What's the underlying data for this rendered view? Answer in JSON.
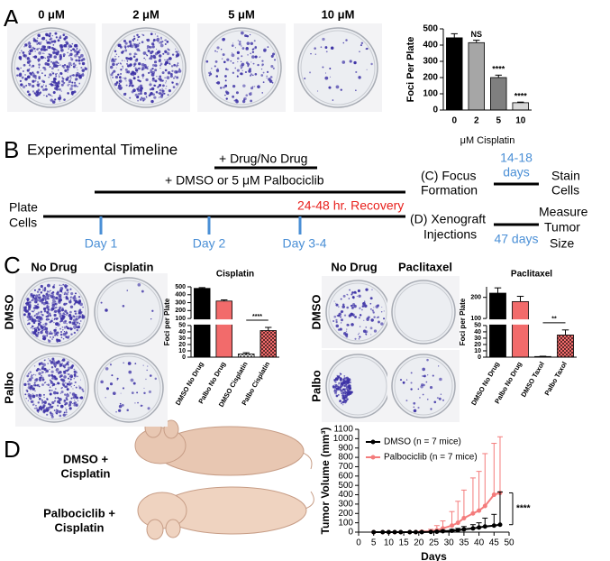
{
  "panel_labels": [
    "A",
    "B",
    "C",
    "D"
  ],
  "panel_a": {
    "dish_labels": [
      "0 μM",
      "2 μM",
      "5 μM",
      "10 μM"
    ]
  },
  "panel_b": {
    "title": "Experimental Timeline",
    "drug": "+ Drug/No Drug",
    "pretreat": "+ DMSO or 5 μM Palbociclib",
    "start": [
      "Plate",
      "Cells"
    ],
    "recovery": "24-48 hr. Recovery",
    "days": [
      "Day 1",
      "Day 2",
      "Day 3-4"
    ],
    "focus": {
      "label": [
        "(C) Focus",
        "Formation"
      ],
      "duration": [
        "14-18",
        "days"
      ],
      "end": [
        "Stain",
        "Cells"
      ]
    },
    "xenograft": {
      "label": [
        "(D) Xenograft",
        "Injections"
      ],
      "duration": "47 days",
      "end": [
        "Measure",
        "Tumor",
        "Size"
      ]
    }
  },
  "panel_c": {
    "left": {
      "columns": [
        "No Drug",
        "Cisplatin"
      ],
      "rows": [
        "DMSO",
        "Palbo"
      ]
    },
    "right": {
      "columns": [
        "No Drug",
        "Paclitaxel"
      ],
      "rows": [
        "DMSO",
        "Palbo"
      ]
    }
  },
  "panel_d": {
    "mouse_labels": [
      [
        "DMSO +",
        "Cisplatin"
      ],
      [
        "Palbociclib +",
        "Cisplatin"
      ]
    ]
  },
  "chart_data": [
    {
      "type": "bar",
      "categories": [
        "0",
        "2",
        "5",
        "10"
      ],
      "values": [
        445,
        415,
        200,
        45
      ],
      "errors": [
        25,
        15,
        15,
        4
      ],
      "colors": [
        "#000000",
        "#a6a6a6",
        "#7f7f7f",
        "#d9d9d9"
      ],
      "significance": [
        null,
        "NS",
        "****",
        "****"
      ],
      "ylabel": "Foci Per Plate",
      "xlabel": "μM Cisplatin",
      "ylim": [
        0,
        500
      ],
      "yticks": [
        0,
        100,
        200,
        300,
        400,
        500
      ]
    },
    {
      "type": "bar",
      "title": "Cisplatin",
      "categories": [
        "DMSO No Drug",
        "Palbo No Drug",
        "DMSO Cisplatin",
        "Palbo Cisplatin"
      ],
      "values": [
        480,
        320,
        5,
        42
      ],
      "errors": [
        10,
        15,
        2,
        5
      ],
      "colors": [
        "#000000",
        "#f26b6b",
        "#ffffff",
        "#f26b6b"
      ],
      "hatched": [
        false,
        false,
        true,
        true
      ],
      "significance": [
        null,
        null,
        null,
        "****"
      ],
      "ylabel": "Foci per Plate",
      "ylim": [
        0,
        500
      ],
      "axis_break": [
        50,
        100
      ],
      "yticks": [
        0,
        10,
        20,
        30,
        40,
        50,
        100,
        200,
        300,
        400,
        500
      ]
    },
    {
      "type": "bar",
      "title": "Paclitaxel",
      "categories": [
        "DMSO No Drug",
        "Palbo No Drug",
        "DMSO Taxol",
        "Palbo Taxol"
      ],
      "values": [
        220,
        180,
        1,
        35
      ],
      "errors": [
        25,
        25,
        0.5,
        8
      ],
      "colors": [
        "#000000",
        "#f26b6b",
        "#ffffff",
        "#f26b6b"
      ],
      "hatched": [
        false,
        false,
        true,
        true
      ],
      "significance": [
        null,
        null,
        null,
        "**"
      ],
      "ylabel": "Foci per Plate",
      "ylim": [
        0,
        250
      ],
      "axis_break": [
        50,
        100
      ],
      "yticks": [
        0,
        10,
        20,
        30,
        40,
        50,
        100,
        200
      ]
    },
    {
      "type": "line",
      "ylabel": "Tumor Volume (mm³)",
      "xlabel": "Days",
      "x": [
        5,
        8,
        10,
        12,
        14,
        17,
        19,
        21,
        24,
        26,
        28,
        31,
        33,
        35,
        38,
        40,
        42,
        45,
        47
      ],
      "series": [
        {
          "name": "DMSO (n = 7 mice)",
          "color": "#000000",
          "values": [
            0,
            0,
            0,
            0,
            0,
            0,
            0,
            0,
            2,
            5,
            10,
            15,
            20,
            30,
            40,
            50,
            60,
            70,
            80
          ],
          "errors": [
            0,
            0,
            0,
            0,
            0,
            0,
            0,
            0,
            5,
            8,
            10,
            15,
            20,
            30,
            40,
            50,
            90,
            120,
            350
          ]
        },
        {
          "name": "Palbociclib (n = 7 mice)",
          "color": "#f47c7c",
          "values": [
            0,
            0,
            0,
            0,
            0,
            0,
            0,
            5,
            10,
            20,
            40,
            70,
            100,
            150,
            200,
            230,
            280,
            400,
            420
          ],
          "errors": [
            0,
            0,
            0,
            0,
            0,
            0,
            0,
            10,
            20,
            50,
            80,
            150,
            230,
            300,
            380,
            420,
            560,
            550,
            600
          ]
        }
      ],
      "xlim": [
        0,
        50
      ],
      "xticks": [
        0,
        5,
        10,
        15,
        20,
        25,
        30,
        35,
        40,
        45,
        50
      ],
      "ylim": [
        0,
        1100
      ],
      "yticks": [
        0,
        100,
        200,
        300,
        400,
        500,
        600,
        700,
        800,
        900,
        1000,
        1100
      ],
      "annotation": "****"
    }
  ]
}
